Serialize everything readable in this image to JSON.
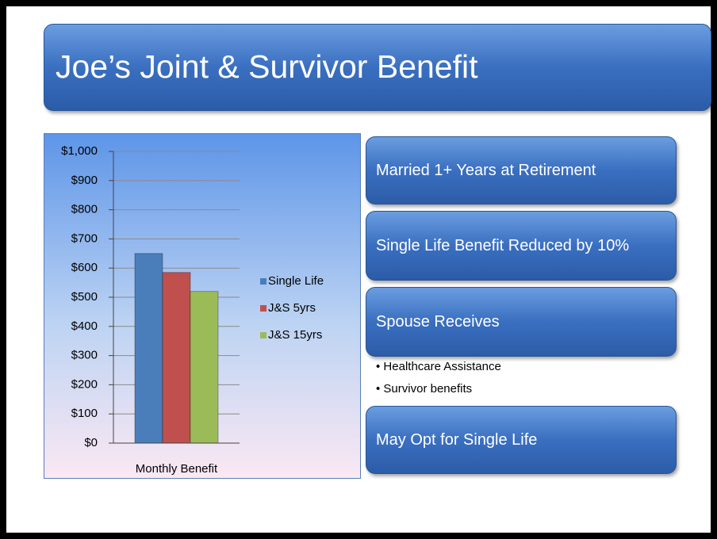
{
  "title": "Joe’s Joint & Survivor Benefit",
  "boxes": [
    "Married 1+ Years at Retirement",
    "Single Life Benefit Reduced by 10%",
    "Spouse Receives",
    "May Opt for Single Life"
  ],
  "bullets": [
    "Healthcare Assistance",
    "Survivor benefits"
  ],
  "chart_data": {
    "type": "bar",
    "categories": [
      "Monthly Benefit"
    ],
    "series": [
      {
        "name": "Single Life",
        "color": "#4a7ebb",
        "values": [
          650
        ]
      },
      {
        "name": "J&S 5yrs",
        "color": "#c0504d",
        "values": [
          585
        ]
      },
      {
        "name": "J&S 15yrs",
        "color": "#9bbb59",
        "values": [
          520
        ]
      }
    ],
    "ylim": [
      0,
      1000
    ],
    "yticks": [
      {
        "value": 0,
        "label": "$0"
      },
      {
        "value": 100,
        "label": "$100"
      },
      {
        "value": 200,
        "label": "$200"
      },
      {
        "value": 300,
        "label": "$300"
      },
      {
        "value": 400,
        "label": "$400"
      },
      {
        "value": 500,
        "label": "$500"
      },
      {
        "value": 600,
        "label": "$600"
      },
      {
        "value": 700,
        "label": "$700"
      },
      {
        "value": 800,
        "label": "$800"
      },
      {
        "value": 900,
        "label": "$900"
      },
      {
        "value": 1000,
        "label": "$1,000"
      }
    ],
    "grid": true,
    "legend": "right"
  }
}
